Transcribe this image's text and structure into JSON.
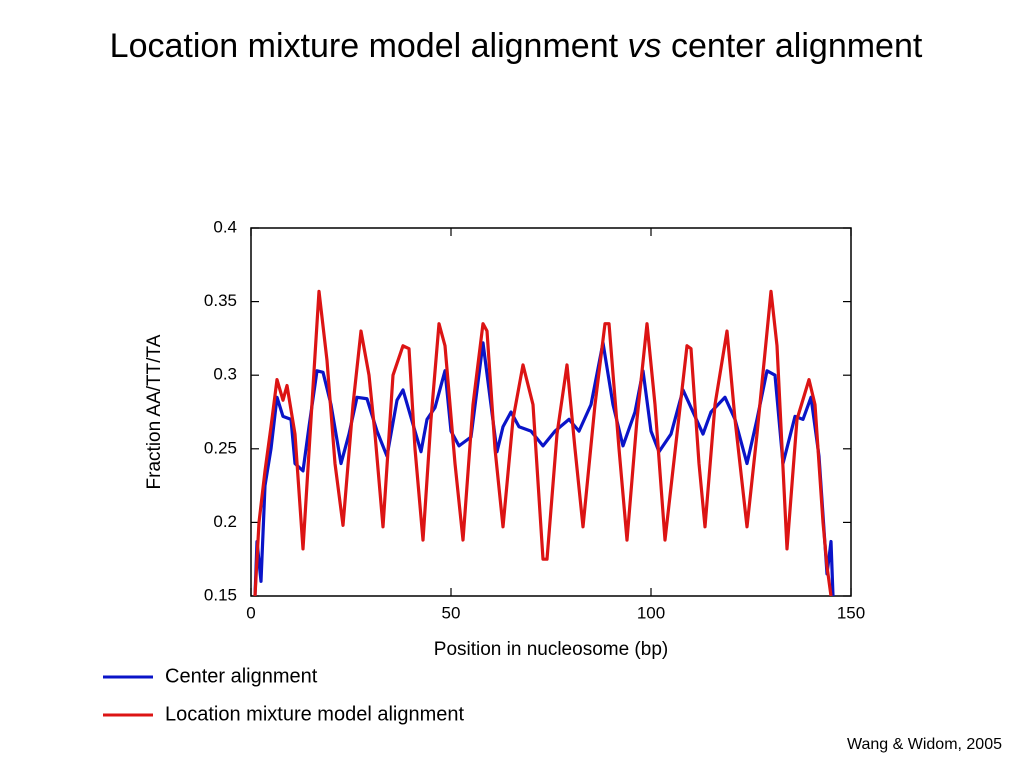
{
  "chart_data": {
    "type": "line",
    "title_parts": [
      "Location mixture model alignment",
      "vs",
      "center alignment"
    ],
    "xlabel": "Position in nucleosome (bp)",
    "ylabel": "Fraction AA/TT/TA",
    "xlim": [
      0,
      150
    ],
    "xticks": [
      0,
      50,
      100,
      150
    ],
    "ylim": [
      0.15,
      0.4
    ],
    "yticks": [
      0.15,
      0.2,
      0.25,
      0.3,
      0.35,
      0.4
    ],
    "grid": false,
    "series": [
      {
        "name": "Center alignment",
        "color": "#0a14c8",
        "x": [
          1,
          1.5,
          2.5,
          3.5,
          5,
          6.5,
          8,
          10,
          11,
          13,
          14.5,
          16.5,
          18,
          20,
          22.5,
          24.5,
          26.5,
          29,
          31.5,
          34,
          36.5,
          38,
          41,
          42.5,
          44,
          46,
          48.5,
          50,
          52,
          55,
          58,
          61.5,
          63,
          65,
          67,
          70,
          73,
          76,
          79.5,
          82,
          85,
          88,
          90.5,
          93,
          96,
          98,
          100,
          102,
          105,
          108,
          110,
          113,
          115,
          118.5,
          121,
          124,
          126.5,
          129,
          131,
          133,
          136,
          138,
          140,
          142,
          144,
          145,
          145.5
        ],
        "values": [
          0.15,
          0.187,
          0.16,
          0.225,
          0.25,
          0.285,
          0.272,
          0.27,
          0.24,
          0.235,
          0.265,
          0.303,
          0.302,
          0.28,
          0.24,
          0.26,
          0.285,
          0.284,
          0.262,
          0.245,
          0.283,
          0.29,
          0.262,
          0.248,
          0.27,
          0.278,
          0.303,
          0.262,
          0.252,
          0.258,
          0.322,
          0.248,
          0.265,
          0.275,
          0.265,
          0.262,
          0.252,
          0.262,
          0.27,
          0.262,
          0.28,
          0.322,
          0.28,
          0.252,
          0.275,
          0.303,
          0.262,
          0.248,
          0.26,
          0.29,
          0.278,
          0.26,
          0.275,
          0.285,
          0.27,
          0.24,
          0.27,
          0.303,
          0.3,
          0.24,
          0.272,
          0.27,
          0.285,
          0.245,
          0.165,
          0.187,
          0.15
        ]
      },
      {
        "name": "Location mixture model alignment",
        "color": "#dc1414",
        "x": [
          1,
          2,
          3.5,
          5,
          6.5,
          8,
          9,
          11,
          13,
          15,
          17,
          19,
          21,
          23,
          25.5,
          27.5,
          29.5,
          31,
          33,
          35.5,
          38,
          39.5,
          41,
          43,
          45,
          47,
          48.5,
          51,
          53,
          55.5,
          58,
          59,
          61,
          63,
          65.5,
          68,
          70.5,
          73,
          74,
          76.5,
          79,
          81,
          83,
          86,
          88.5,
          89.5,
          92,
          94,
          96.5,
          99,
          101,
          103.5,
          106.5,
          109,
          110,
          112,
          113.5,
          116,
          119,
          121,
          124,
          126.5,
          130,
          131.5,
          134,
          136.5,
          139.5,
          141,
          143,
          144,
          145
        ],
        "values": [
          0.15,
          0.2,
          0.235,
          0.265,
          0.297,
          0.283,
          0.293,
          0.26,
          0.182,
          0.27,
          0.357,
          0.31,
          0.24,
          0.198,
          0.28,
          0.33,
          0.3,
          0.26,
          0.197,
          0.3,
          0.32,
          0.318,
          0.25,
          0.188,
          0.27,
          0.335,
          0.32,
          0.24,
          0.188,
          0.28,
          0.335,
          0.33,
          0.25,
          0.197,
          0.27,
          0.307,
          0.28,
          0.175,
          0.175,
          0.26,
          0.307,
          0.25,
          0.197,
          0.28,
          0.335,
          0.335,
          0.25,
          0.188,
          0.27,
          0.335,
          0.28,
          0.188,
          0.26,
          0.32,
          0.318,
          0.24,
          0.197,
          0.28,
          0.33,
          0.27,
          0.197,
          0.26,
          0.357,
          0.32,
          0.182,
          0.27,
          0.297,
          0.28,
          0.2,
          0.17,
          0.15
        ]
      }
    ],
    "annotation": "Wang & Widom, 2005"
  }
}
